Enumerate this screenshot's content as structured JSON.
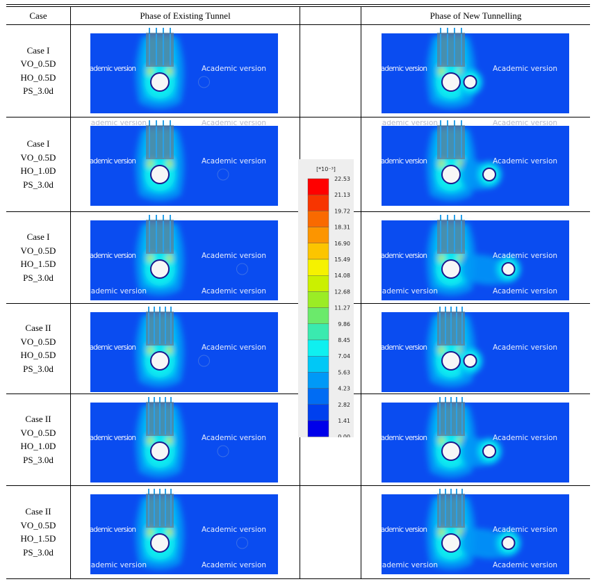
{
  "table": {
    "headers": {
      "case": "Case",
      "existing": "Phase of Existing Tunnel",
      "new": "Phase of New Tunnelling"
    },
    "rows": [
      {
        "case": [
          "Case I",
          "VO_0.5D",
          "HO_0.5D",
          "PS_3.0d"
        ],
        "piles": 4,
        "ho": 0.5
      },
      {
        "case": [
          "Case I",
          "VO_0.5D",
          "HO_1.0D",
          "PS_3.0d"
        ],
        "piles": 4,
        "ho": 1.0
      },
      {
        "case": [
          "Case I",
          "VO_0.5D",
          "HO_1.5D",
          "PS_3.0d"
        ],
        "piles": 4,
        "ho": 1.5
      },
      {
        "case": [
          "Case II",
          "VO_0.5D",
          "HO_0.5D",
          "PS_3.0d"
        ],
        "piles": 5,
        "ho": 0.5
      },
      {
        "case": [
          "Case II",
          "VO_0.5D",
          "HO_1.0D",
          "PS_3.0d"
        ],
        "piles": 5,
        "ho": 1.0
      },
      {
        "case": [
          "Case II",
          "VO_0.5D",
          "HO_1.5D",
          "PS_3.0d"
        ],
        "piles": 5,
        "ho": 1.5
      }
    ]
  },
  "watermark": "Academic version",
  "legend": {
    "unit": "[*10⁻³]",
    "ticks": [
      "22.53",
      "21.13",
      "19.72",
      "18.31",
      "16.90",
      "15.49",
      "14.08",
      "12.68",
      "11.27",
      "9.86",
      "8.45",
      "7.04",
      "5.63",
      "4.23",
      "2.82",
      "1.41",
      "0.00"
    ],
    "colors": [
      "#ff0000",
      "#f73500",
      "#f96a00",
      "#fc9500",
      "#fcc500",
      "#f6f200",
      "#cbf000",
      "#9bec25",
      "#6bea6b",
      "#3aeaaf",
      "#0ff0f0",
      "#00c8f6",
      "#0099f7",
      "#006cf3",
      "#0040ee",
      "#0000ea"
    ]
  },
  "colors": {
    "background": "#0a4cf0",
    "tunnel_fill": "#f7f7f7",
    "tunnel_edge": "#1a1a8c"
  }
}
